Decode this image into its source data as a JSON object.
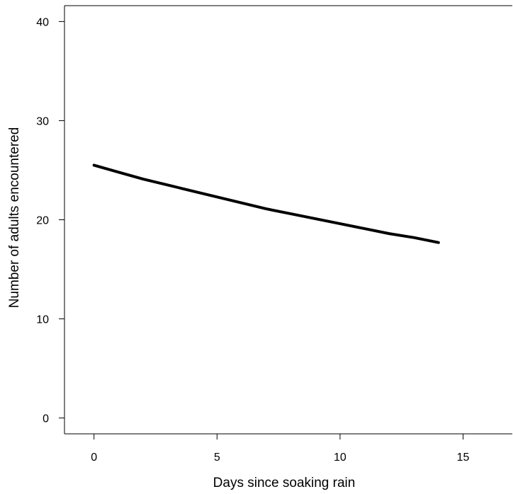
{
  "chart_data": {
    "type": "line",
    "title": "",
    "xlabel": "Days since soaking rain",
    "ylabel": "Number of adults encountered",
    "xlim": [
      -1.2,
      17
    ],
    "ylim": [
      -1.6,
      41.6
    ],
    "x_ticks": [
      0,
      5,
      10,
      15
    ],
    "y_ticks": [
      0,
      10,
      20,
      30,
      40
    ],
    "x_tick_labels": [
      "0",
      "5",
      "10",
      "15"
    ],
    "y_tick_labels": [
      "0",
      "10",
      "20",
      "30",
      "40"
    ],
    "grid": false,
    "legend": "none",
    "line_color": "#000000",
    "series": [
      {
        "x": [
          0,
          1,
          2,
          3,
          4,
          5,
          6,
          7,
          8,
          9,
          10,
          11,
          12,
          13,
          14
        ],
        "y": [
          25.5,
          24.8,
          24.1,
          23.5,
          22.9,
          22.3,
          21.7,
          21.1,
          20.6,
          20.1,
          19.6,
          19.1,
          18.6,
          18.2,
          17.7
        ]
      }
    ]
  }
}
